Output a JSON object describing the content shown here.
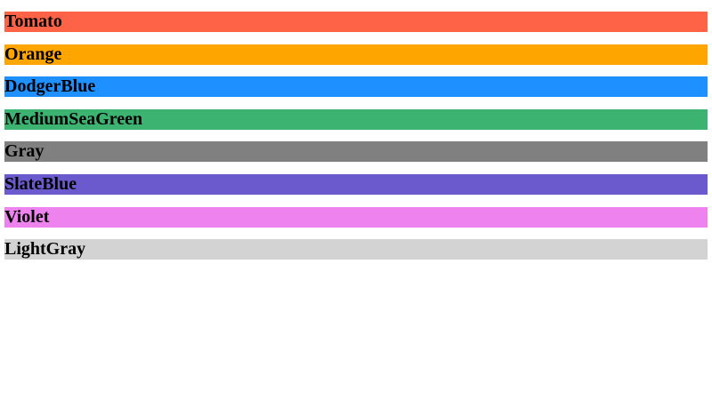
{
  "headings": [
    {
      "label": "Tomato",
      "color": "#ff6347"
    },
    {
      "label": "Orange",
      "color": "#ffa500"
    },
    {
      "label": "DodgerBlue",
      "color": "#1e90ff"
    },
    {
      "label": "MediumSeaGreen",
      "color": "#3cb371"
    },
    {
      "label": "Gray",
      "color": "#808080"
    },
    {
      "label": "SlateBlue",
      "color": "#6a5acd"
    },
    {
      "label": "Violet",
      "color": "#ee82ee"
    },
    {
      "label": "LightGray",
      "color": "#d3d3d3"
    }
  ]
}
